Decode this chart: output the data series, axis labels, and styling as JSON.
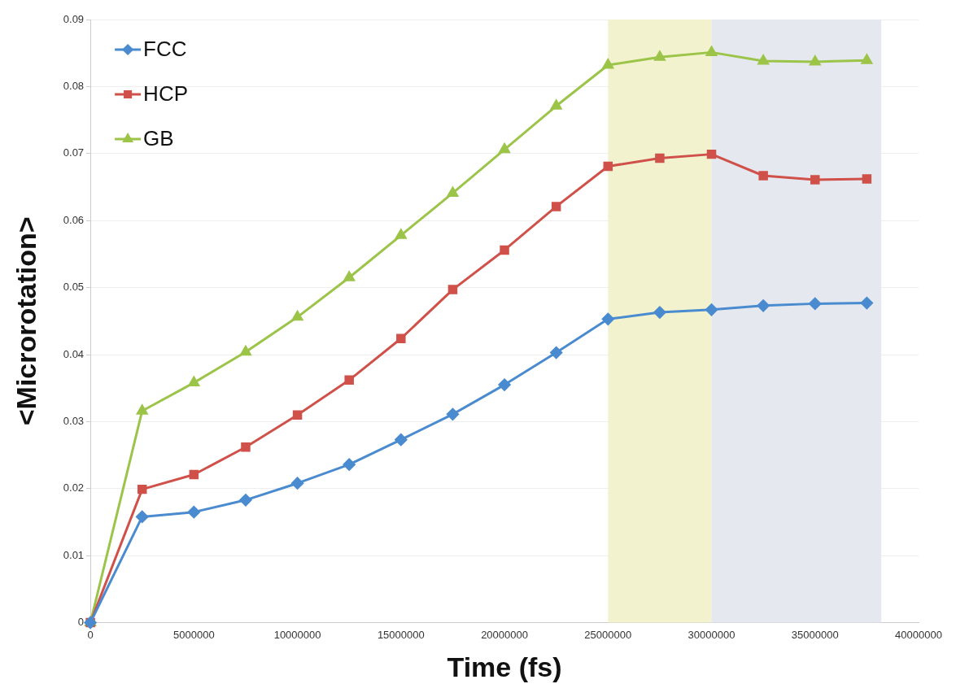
{
  "chart_data": {
    "type": "line",
    "xlabel": "Time (fs)",
    "ylabel": "<Microrotation>",
    "x": [
      0,
      2500000,
      5000000,
      7500000,
      10000000,
      12500000,
      15000000,
      17500000,
      20000000,
      22500000,
      25000000,
      27500000,
      30000000,
      32500000,
      35000000,
      37500000
    ],
    "series": [
      {
        "name": "FCC",
        "color": "#4a8bd0",
        "marker": "diamond",
        "values": [
          0,
          0.0158,
          0.0165,
          0.0183,
          0.0208,
          0.0236,
          0.0273,
          0.0311,
          0.0355,
          0.0403,
          0.0453,
          0.0463,
          0.0467,
          0.0473,
          0.0476,
          0.0477
        ]
      },
      {
        "name": "HCP",
        "color": "#d0504a",
        "marker": "square",
        "values": [
          0,
          0.0199,
          0.0221,
          0.0262,
          0.031,
          0.0362,
          0.0424,
          0.0497,
          0.0556,
          0.0621,
          0.0681,
          0.0693,
          0.0699,
          0.0667,
          0.0661,
          0.0662
        ]
      },
      {
        "name": "GB",
        "color": "#9bc448",
        "marker": "triangle",
        "values": [
          0,
          0.0316,
          0.0358,
          0.0404,
          0.0456,
          0.0515,
          0.0578,
          0.0641,
          0.0706,
          0.0771,
          0.0832,
          0.0844,
          0.0851,
          0.0838,
          0.0837,
          0.0839
        ]
      }
    ],
    "xlim": [
      0,
      40000000
    ],
    "xticks": [
      0,
      5000000,
      10000000,
      15000000,
      20000000,
      25000000,
      30000000,
      35000000,
      40000000
    ],
    "ylim": [
      0,
      0.09
    ],
    "yticks": [
      0,
      0.01,
      0.02,
      0.03,
      0.04,
      0.05,
      0.06,
      0.07,
      0.08,
      0.09
    ],
    "bands": [
      {
        "axis": "x",
        "from": 25000000,
        "to": 30000000,
        "color": "#f2f2cf"
      },
      {
        "axis": "x",
        "from": 30000000,
        "to": 38200000,
        "color": "#e5e8ee"
      }
    ],
    "grid": "y",
    "legend": "top left"
  }
}
